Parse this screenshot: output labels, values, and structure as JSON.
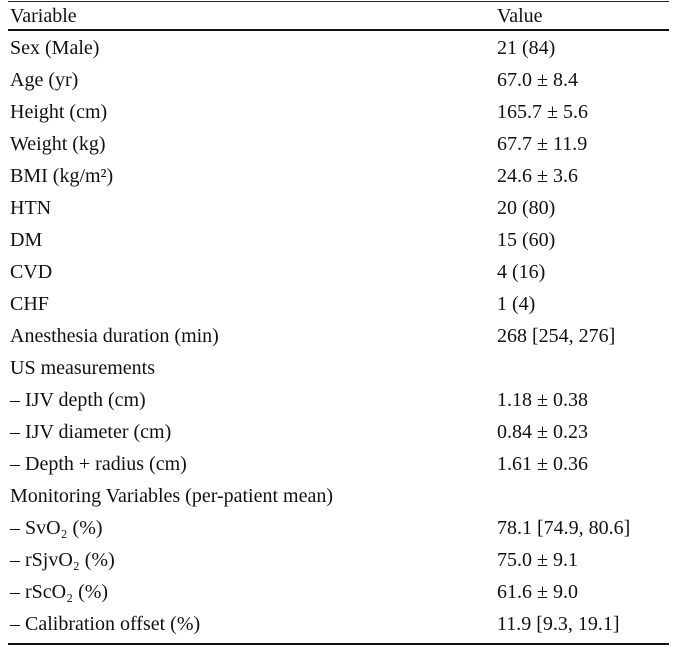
{
  "table": {
    "header": {
      "variable": "Variable",
      "value": "Value"
    },
    "rows": [
      {
        "variable": "Sex (Male)",
        "value": "21 (84)"
      },
      {
        "variable": "Age (yr)",
        "value": "67.0 ± 8.4"
      },
      {
        "variable": "Height (cm)",
        "value": "165.7 ± 5.6"
      },
      {
        "variable": "Weight (kg)",
        "value": "67.7 ± 11.9"
      },
      {
        "variable": "BMI (kg/m²)",
        "value": "24.6 ± 3.6"
      },
      {
        "variable": "HTN",
        "value": "20 (80)"
      },
      {
        "variable": "DM",
        "value": "15 (60)"
      },
      {
        "variable": "CVD",
        "value": "4 (16)"
      },
      {
        "variable": "CHF",
        "value": "1 (4)"
      },
      {
        "variable": "Anesthesia duration (min)",
        "value": "268 [254, 276]"
      },
      {
        "variable": "US measurements",
        "value": ""
      },
      {
        "variable": "– IJV depth (cm)",
        "value": "1.18 ± 0.38"
      },
      {
        "variable": "– IJV diameter (cm)",
        "value": "0.84 ± 0.23"
      },
      {
        "variable": "– Depth + radius (cm)",
        "value": "1.61 ± 0.36"
      },
      {
        "variable": "Monitoring Variables (per-patient mean)",
        "value": ""
      },
      {
        "variable": "– SvO₂ (%)",
        "value": "78.1 [74.9, 80.6]"
      },
      {
        "variable": "– rSjvO₂ (%)",
        "value": "75.0 ± 9.1"
      },
      {
        "variable": "– rScO₂ (%)",
        "value": "61.6 ± 9.0"
      },
      {
        "variable": "– Calibration offset (%)",
        "value": "11.9 [9.3, 19.1]"
      }
    ]
  }
}
